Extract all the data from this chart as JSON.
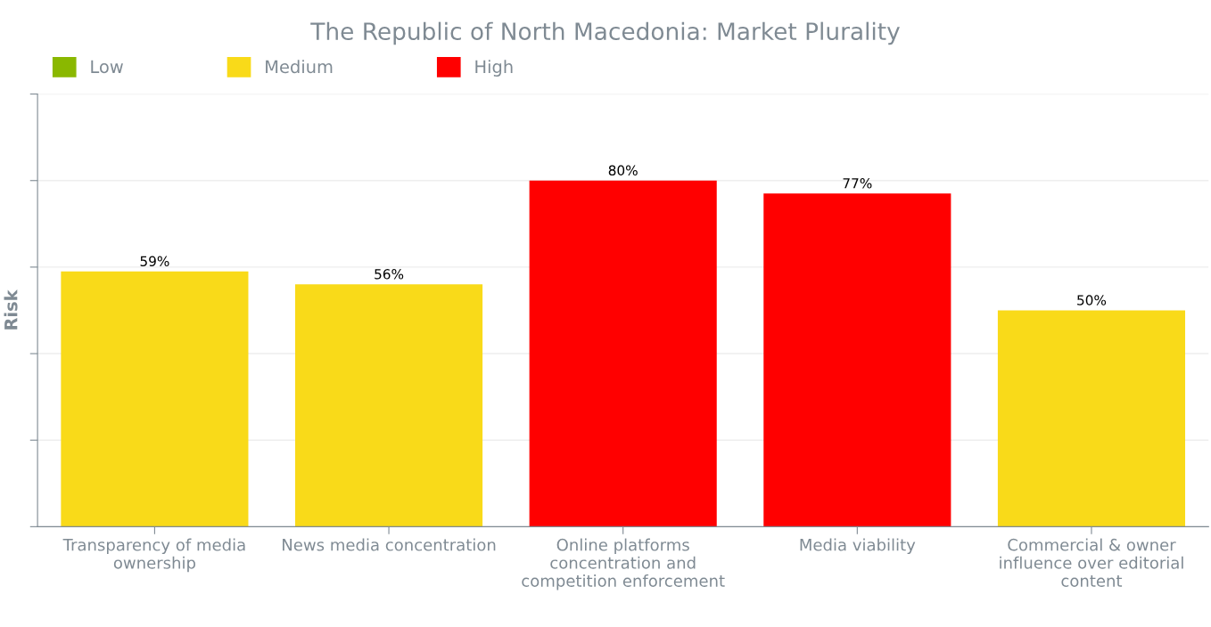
{
  "chart_data": {
    "type": "bar",
    "title": "The Republic of North Macedonia: Market Plurality",
    "ylabel": "Risk",
    "categories": [
      "Transparency of media ownership",
      "News media concentration",
      "Online platforms concentration and competition enforcement",
      "Media viability",
      "Commercial & owner influence over editorial content"
    ],
    "series": [
      {
        "name": "Low",
        "color": "#8ab800",
        "values": [
          null,
          null,
          null,
          null,
          null
        ],
        "value_labels": [
          null,
          null,
          null,
          null,
          null
        ]
      },
      {
        "name": "Medium",
        "color": "#f9da19",
        "values": [
          59,
          56,
          null,
          null,
          50
        ],
        "value_labels": [
          "59%",
          "56%",
          null,
          null,
          "50%"
        ]
      },
      {
        "name": "High",
        "color": "#ff0000",
        "values": [
          null,
          null,
          80,
          77,
          null
        ],
        "value_labels": [
          null,
          null,
          "80%",
          "77%",
          null
        ]
      }
    ],
    "ylim": [
      0,
      100
    ],
    "yticks": [
      {
        "value": 0,
        "label": null
      },
      {
        "value": 20,
        "label": null
      },
      {
        "value": 40,
        "label": null
      },
      {
        "value": 60,
        "label": null
      },
      {
        "value": 80,
        "label": null
      },
      {
        "value": 100,
        "label": null
      }
    ],
    "grid": "y",
    "legend": "top left"
  }
}
